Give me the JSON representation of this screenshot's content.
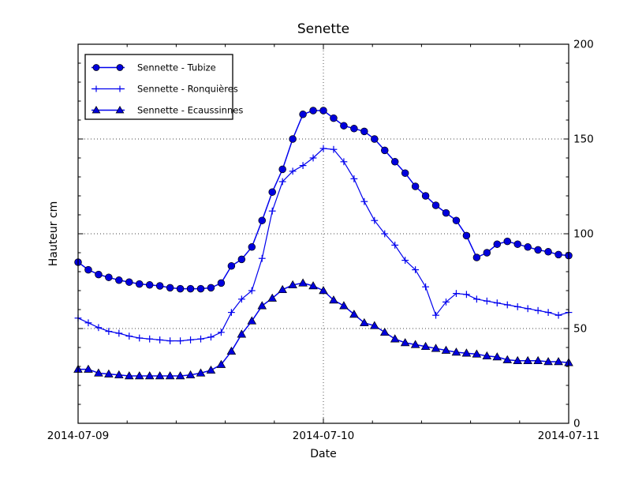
{
  "chart_data": {
    "type": "line",
    "title": "Senette",
    "xlabel": "Date",
    "ylabel": "Hauteur cm",
    "x_tick_labels": [
      "2014-07-09",
      "2014-07-10",
      "2014-07-11"
    ],
    "x_tick_hours": [
      0,
      24,
      48
    ],
    "x_hours_range": [
      0,
      48
    ],
    "x_minor_tick_hours": 4.8,
    "y_tick_labels": [
      "0",
      "50",
      "100",
      "150",
      "200"
    ],
    "y_ticks": [
      0,
      50,
      100,
      150,
      200
    ],
    "y_minor_step": 10,
    "ylim": [
      0,
      200
    ],
    "grid": "dotted",
    "legend_position": "upper-left",
    "colors": {
      "line": "#0000ee",
      "marker_fill": "#0000dd",
      "marker_edge": "#000000",
      "axis": "#000000",
      "grid": "#444444"
    },
    "series": [
      {
        "name": "Sennette - Tubize",
        "marker": "circle",
        "values": [
          85,
          81,
          78.5,
          77,
          75.5,
          74.5,
          73.5,
          73,
          72.5,
          71.5,
          71,
          71,
          71,
          71.5,
          74,
          83,
          86.5,
          93,
          107,
          122,
          134,
          150,
          163,
          165,
          165,
          161,
          157,
          155.5,
          154,
          150,
          144,
          138,
          132,
          125,
          120,
          115,
          111,
          107,
          99,
          87.5,
          90,
          94.5,
          96,
          94.5,
          93,
          91.5,
          90.5,
          89,
          88.5
        ]
      },
      {
        "name": "Sennette - Ronquières",
        "marker": "plus",
        "values": [
          55.5,
          53,
          50.5,
          48.5,
          47.5,
          46,
          45,
          44.5,
          44,
          43.5,
          43.5,
          44,
          44.5,
          45.5,
          48,
          58.5,
          65.5,
          70,
          87,
          112,
          127.5,
          133,
          136,
          140,
          145,
          144.5,
          138,
          129,
          117,
          107,
          100,
          94,
          86,
          81,
          72,
          57,
          64,
          68.5,
          68,
          65.5,
          64.5,
          63.5,
          62.5,
          61.5,
          60.5,
          59.5,
          58.5,
          57,
          58.5
        ]
      },
      {
        "name": "Sennette - Ecaussinnes",
        "marker": "triangle",
        "values": [
          28.5,
          28.5,
          26.5,
          26,
          25.5,
          25,
          25,
          25,
          25,
          25,
          25,
          25.5,
          26.5,
          28,
          31,
          38,
          47,
          54,
          62,
          66,
          70.5,
          73,
          74,
          72.5,
          70,
          65,
          62,
          57.5,
          53,
          51.5,
          48,
          44.5,
          42.5,
          41.5,
          40.5,
          39.5,
          38.5,
          37.5,
          37,
          36.5,
          35.5,
          35,
          33.5,
          33,
          33,
          33,
          32.5,
          32.5,
          32
        ]
      }
    ]
  }
}
